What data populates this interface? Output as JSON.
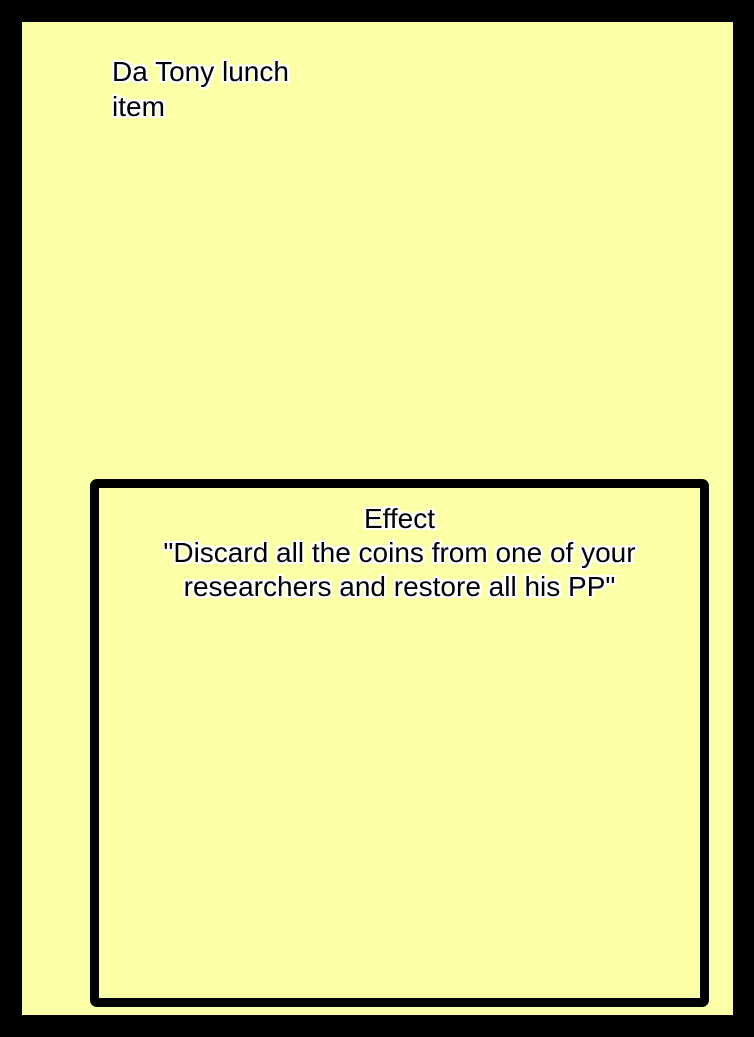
{
  "card": {
    "background_color": "#fbffa6",
    "border_color": "#000000",
    "title_lines": [
      "Da Tony lunch",
      "item"
    ],
    "effect": {
      "heading": "Effect",
      "lines": [
        "\"Discard all the coins from one of your",
        "researchers and restore all his PP\""
      ]
    }
  }
}
